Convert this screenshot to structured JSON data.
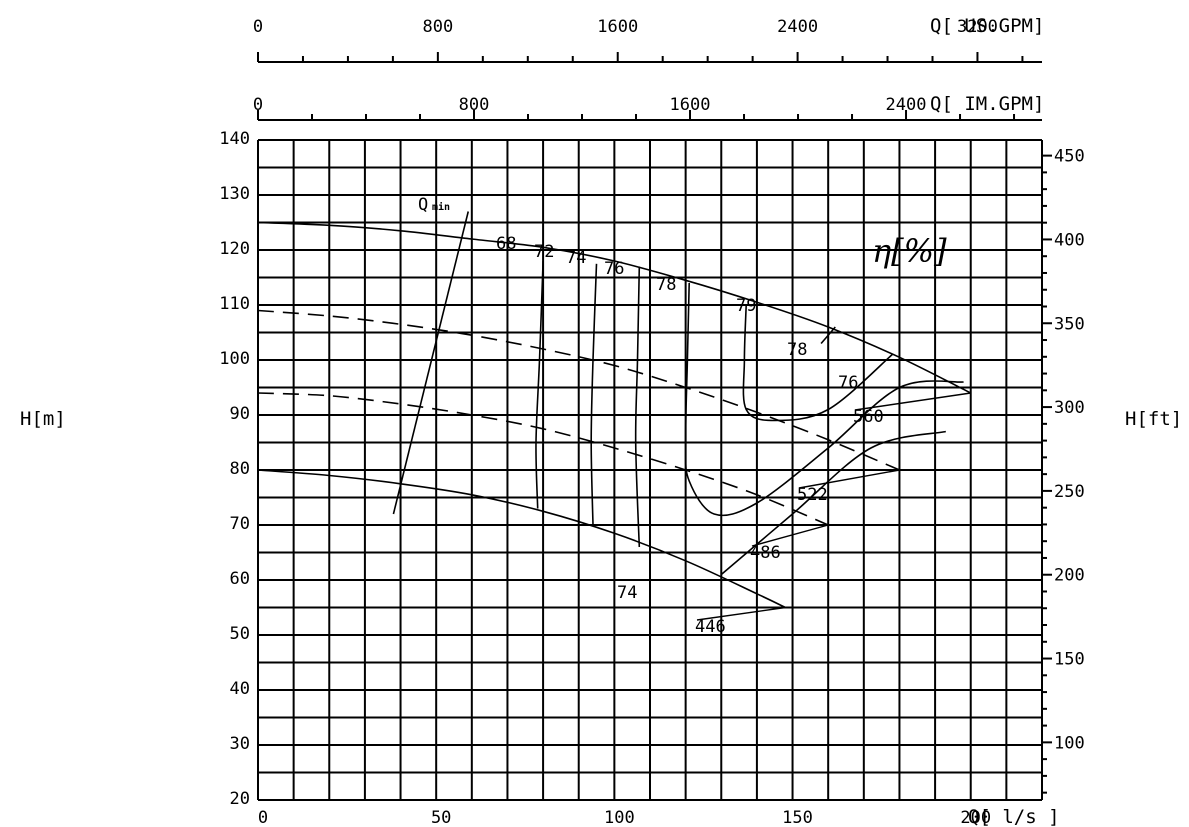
{
  "chart_data": {
    "type": "line",
    "x_axis": {
      "label": "Q[ l/s ]",
      "range": [
        0,
        220
      ],
      "ticks": [
        0,
        50,
        100,
        150,
        200
      ],
      "tick_labels": [
        "0",
        "50",
        "100",
        "150",
        "200"
      ]
    },
    "y_axis_left": {
      "label": "H[m]",
      "range": [
        20,
        140
      ],
      "ticks": [
        20,
        30,
        40,
        50,
        60,
        70,
        80,
        90,
        100,
        110,
        120,
        130,
        140
      ],
      "tick_labels": [
        "20",
        "30",
        "40",
        "50",
        "60",
        "70",
        "80",
        "90",
        "100",
        "110",
        "120",
        "130",
        "140"
      ]
    },
    "y_axis_right": {
      "label": "H[ft]",
      "ticks": [
        100,
        150,
        200,
        250,
        300,
        350,
        400,
        450
      ],
      "tick_labels": [
        "100",
        "150",
        "200",
        "250",
        "300",
        "350",
        "400",
        "450"
      ]
    },
    "top_axis_im": {
      "label": "Q[ IM.GPM]",
      "ticks": [
        0,
        800,
        1600,
        2400
      ],
      "tick_labels": [
        "0",
        "800",
        "1600",
        "2400"
      ]
    },
    "top_axis_us": {
      "label": "Q[ US.GPM]",
      "ticks": [
        0,
        800,
        1600,
        2400,
        3200
      ],
      "tick_labels": [
        "0",
        "800",
        "1600",
        "2400",
        "3200"
      ]
    },
    "series": [
      {
        "name": "560",
        "style": "solid",
        "x": [
          0,
          20,
          40,
          60,
          80,
          100,
          120,
          140,
          160,
          180,
          200
        ],
        "y": [
          125,
          124.5,
          123.5,
          122,
          120.5,
          118,
          114.5,
          110.5,
          106,
          100.5,
          94
        ]
      },
      {
        "name": "522",
        "style": "dashed",
        "x": [
          0,
          20,
          40,
          60,
          80,
          100,
          120,
          140,
          160,
          180
        ],
        "y": [
          109,
          108,
          106.5,
          104.5,
          102,
          99,
          95,
          90.5,
          85.5,
          80
        ]
      },
      {
        "name": "486",
        "style": "dashed",
        "x": [
          0,
          20,
          40,
          60,
          80,
          100,
          120,
          140,
          160
        ],
        "y": [
          94,
          93.5,
          92,
          90,
          87.5,
          84,
          80,
          75.5,
          70
        ]
      },
      {
        "name": "446",
        "style": "solid",
        "x": [
          0,
          20,
          40,
          60,
          80,
          100,
          120,
          140,
          148
        ],
        "y": [
          80,
          79,
          77.5,
          75.5,
          72.5,
          68.5,
          63.5,
          57.5,
          55
        ]
      }
    ],
    "efficiency_label": "η[%]",
    "efficiency_contours": [
      "68",
      "72",
      "74",
      "76",
      "78",
      "79",
      "78",
      "76",
      "74"
    ],
    "qmin_label": "Q",
    "qmin_subscript": "min"
  }
}
